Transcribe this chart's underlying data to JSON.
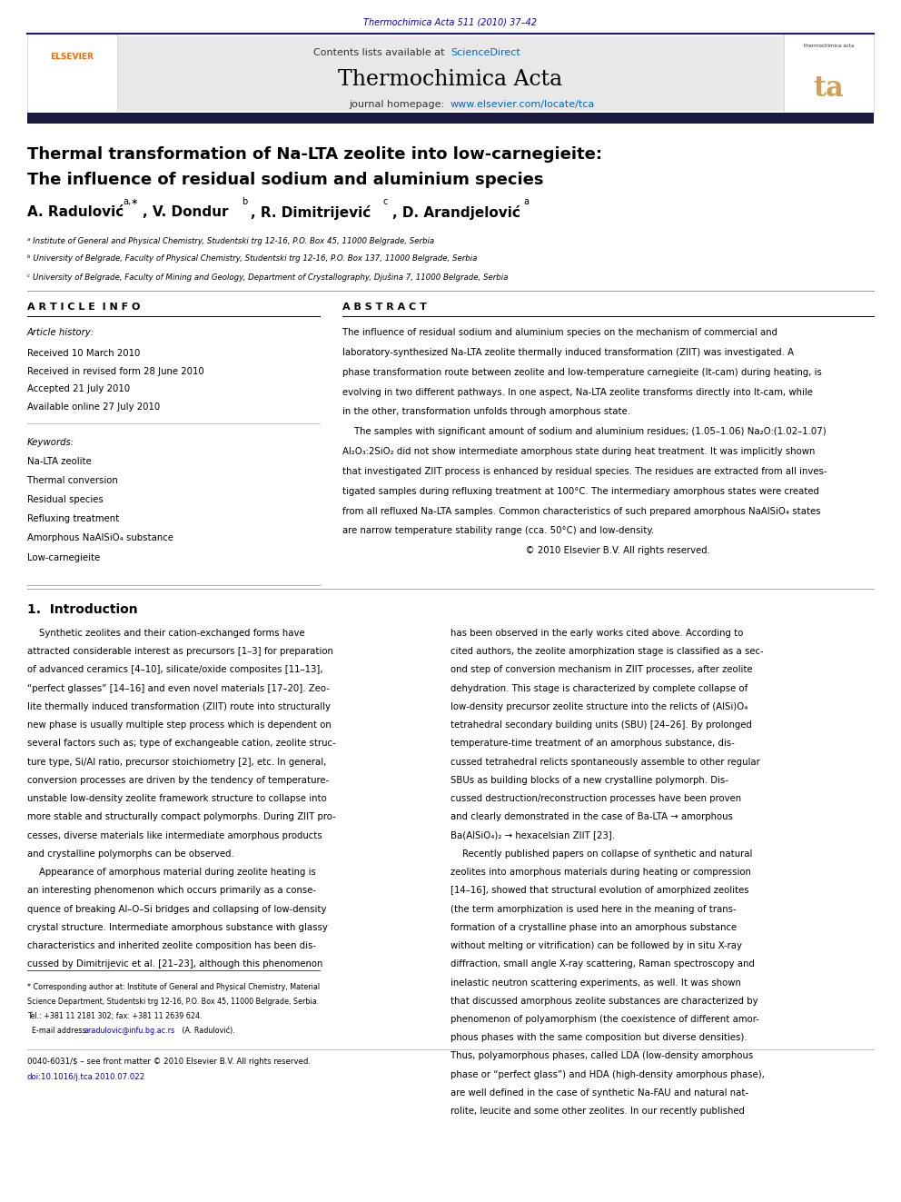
{
  "page_width": 9.92,
  "page_height": 13.23,
  "bg_color": "#ffffff",
  "journal_ref": "Thermochimica Acta 511 (2010) 37–42",
  "journal_ref_color": "#0000cc",
  "header_bg": "#e8e8e8",
  "header_text1": "Contents lists available at ",
  "header_sciencedirect": "ScienceDirect",
  "header_sciencedirect_color": "#0066cc",
  "journal_title": "Thermochimica Acta",
  "journal_homepage_text": "journal homepage: ",
  "journal_url": "www.elsevier.com/locate/tca",
  "journal_url_color": "#0066cc",
  "divider_color": "#1a1a6e",
  "paper_title_line1": "Thermal transformation of Na-LTA zeolite into low-carnegieite:",
  "paper_title_line2": "The influence of residual sodium and aluminium species",
  "affil_a": "ᵃ Institute of General and Physical Chemistry, Studentski trg 12-16, P.O. Box 45, 11000 Belgrade, Serbia",
  "affil_b": "ᵇ University of Belgrade, Faculty of Physical Chemistry, Studentski trg 12-16, P.O. Box 137, 11000 Belgrade, Serbia",
  "affil_c": "ᶜ University of Belgrade, Faculty of Mining and Geology, Department of Crystallography, Djušina 7, 11000 Belgrade, Serbia",
  "article_info_title": "A R T I C L E  I N F O",
  "abstract_title": "A B S T R A C T",
  "article_history_title": "Article history:",
  "received": "Received 10 March 2010",
  "revised": "Received in revised form 28 June 2010",
  "accepted": "Accepted 21 July 2010",
  "available": "Available online 27 July 2010",
  "keywords_title": "Keywords:",
  "keywords": [
    "Na-LTA zeolite",
    "Thermal conversion",
    "Residual species",
    "Refluxing treatment",
    "Amorphous NaAlSiO₄ substance",
    "Low-carnegieite"
  ],
  "footer_text1": "0040-6031/$ – see front matter © 2010 Elsevier B.V. All rights reserved.",
  "footer_text2": "doi:10.1016/j.tca.2010.07.022",
  "footer_url_color": "#0000cc"
}
